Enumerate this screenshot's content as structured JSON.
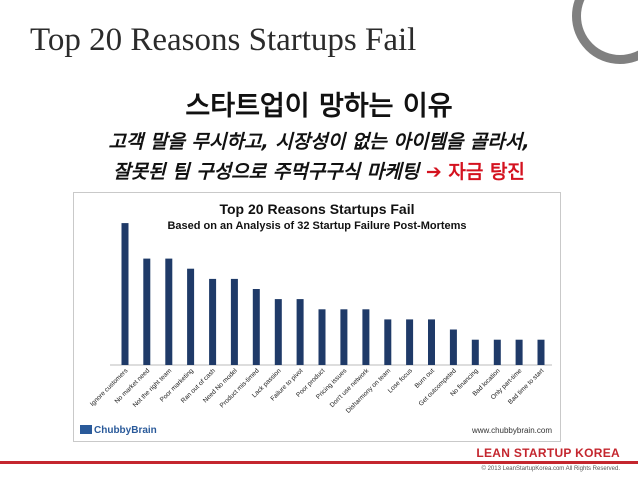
{
  "slide": {
    "title": "Top 20 Reasons Startups Fail",
    "heading_ko": "스타트업이 망하는 이유",
    "line1_ko": "고객 말을 무시하고, 시장성이 없는 아이템을 골라서,",
    "line2_ko_before": "잘못된 팀 구성으로 주먹구구식 마케팅 ",
    "line2_arrow": "➔",
    "line2_ko_accent": " 자금 탕진",
    "accent_color": "#d4121f"
  },
  "chart_data": {
    "type": "bar",
    "title": "Top 20 Reasons Startups Fail",
    "subtitle": "Based on an Analysis of 32 Startup Failure Post-Mortems",
    "categories": [
      "Ignore customers",
      "No market need",
      "Not the right team",
      "Poor marketing",
      "Ran out of cash",
      "Need No model",
      "Product mis-timed",
      "Lack passion",
      "Failure to pivot",
      "Poor product",
      "Pricing issues",
      "Don't use network",
      "Disharmony on team",
      "Lose focus",
      "Burn out",
      "Get outcompeted",
      "No financing",
      "Bad location",
      "Only part-time",
      "Bad time to start"
    ],
    "values": [
      14,
      10.5,
      10.5,
      9.5,
      8.5,
      8.5,
      7.5,
      6.5,
      6.5,
      5.5,
      5.5,
      5.5,
      4.5,
      4.5,
      4.5,
      3.5,
      2.5,
      2.5,
      2.5,
      2.5
    ],
    "ylim": [
      0,
      15
    ],
    "grid": false,
    "bar_color": "#1f3a68",
    "logo_text": "ChubbyBrain",
    "source": "www.chubbybrain.com"
  },
  "footer": {
    "brand": "LEAN STARTUP KOREA",
    "copyright": "© 2013 LeanStartupKorea.com All Rights Reserved.",
    "rule_color": "#c4262e"
  }
}
